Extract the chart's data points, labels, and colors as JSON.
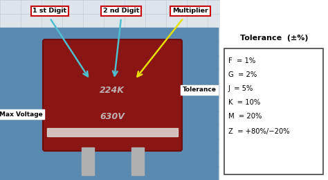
{
  "bg_color": "#dde4ea",
  "labels": {
    "1st_digit": "1 st Digit",
    "2nd_digit": "2 nd Digit",
    "multiplier": "Multiplier",
    "tolerance": "Tolerance",
    "max_voltage": "Max Voltage"
  },
  "tolerance_title": "Tolerance  (±%)",
  "tolerance_entries": [
    "F  = 1%",
    "G  = 2%",
    "J  = 5%",
    "K  = 10%",
    "M  = 20%",
    "Z  = +80%/−20%"
  ],
  "cap_text_top": "224K",
  "cap_text_bot": "630V",
  "label_box_edge": "#cc0000",
  "arrow_cyan": "#4dbfcf",
  "arrow_yellow": "#e8e000",
  "arrow_purple": "#6b3fa0",
  "arrow_red": "#cc0000",
  "grid_color": "#c0c8d0",
  "photo_bg": "#5a8ab0",
  "cap_color": "#8a1515",
  "cap_dark": "#6a0f0f",
  "stripe_color": "#e0ddd8",
  "lead_color": "#b0b0b0"
}
